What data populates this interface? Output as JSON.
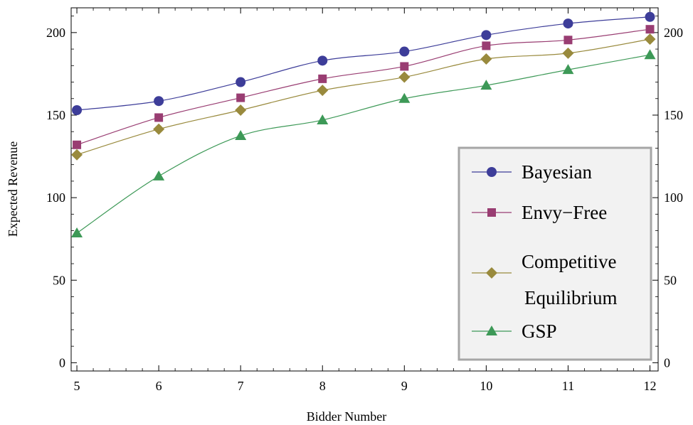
{
  "chart_data": {
    "type": "line",
    "title": "",
    "xlabel": "Bidder Number",
    "ylabel": "Expected Revenue",
    "x": [
      5,
      6,
      7,
      8,
      9,
      10,
      11,
      12
    ],
    "xlim": [
      4.93,
      12.1
    ],
    "ylim": [
      -5,
      215
    ],
    "xticks": [
      5,
      6,
      7,
      8,
      9,
      10,
      11,
      12
    ],
    "yticks": [
      0,
      50,
      100,
      150,
      200
    ],
    "grid": false,
    "legend_position": "bottom-right",
    "series": [
      {
        "name": "Bayesian",
        "color": "#3d3d99",
        "marker": "circle",
        "values": [
          153,
          158.5,
          170,
          183,
          188.5,
          198.5,
          205.5,
          209.5
        ]
      },
      {
        "name": "Envy−Free",
        "color": "#993d72",
        "marker": "square",
        "values": [
          132,
          148.5,
          160.5,
          172,
          179.5,
          192,
          195.5,
          202
        ]
      },
      {
        "name": "Competitive Equilibrium",
        "legend_lines": [
          "Competitive",
          "Equilibrium"
        ],
        "color": "#998a3d",
        "marker": "diamond",
        "values": [
          126,
          141.5,
          153,
          165,
          173,
          184,
          187.5,
          196
        ]
      },
      {
        "name": "GSP",
        "color": "#3d9957",
        "marker": "triangle",
        "values": [
          78.5,
          113,
          137.5,
          147,
          160,
          168,
          177.5,
          186.5
        ]
      }
    ]
  }
}
